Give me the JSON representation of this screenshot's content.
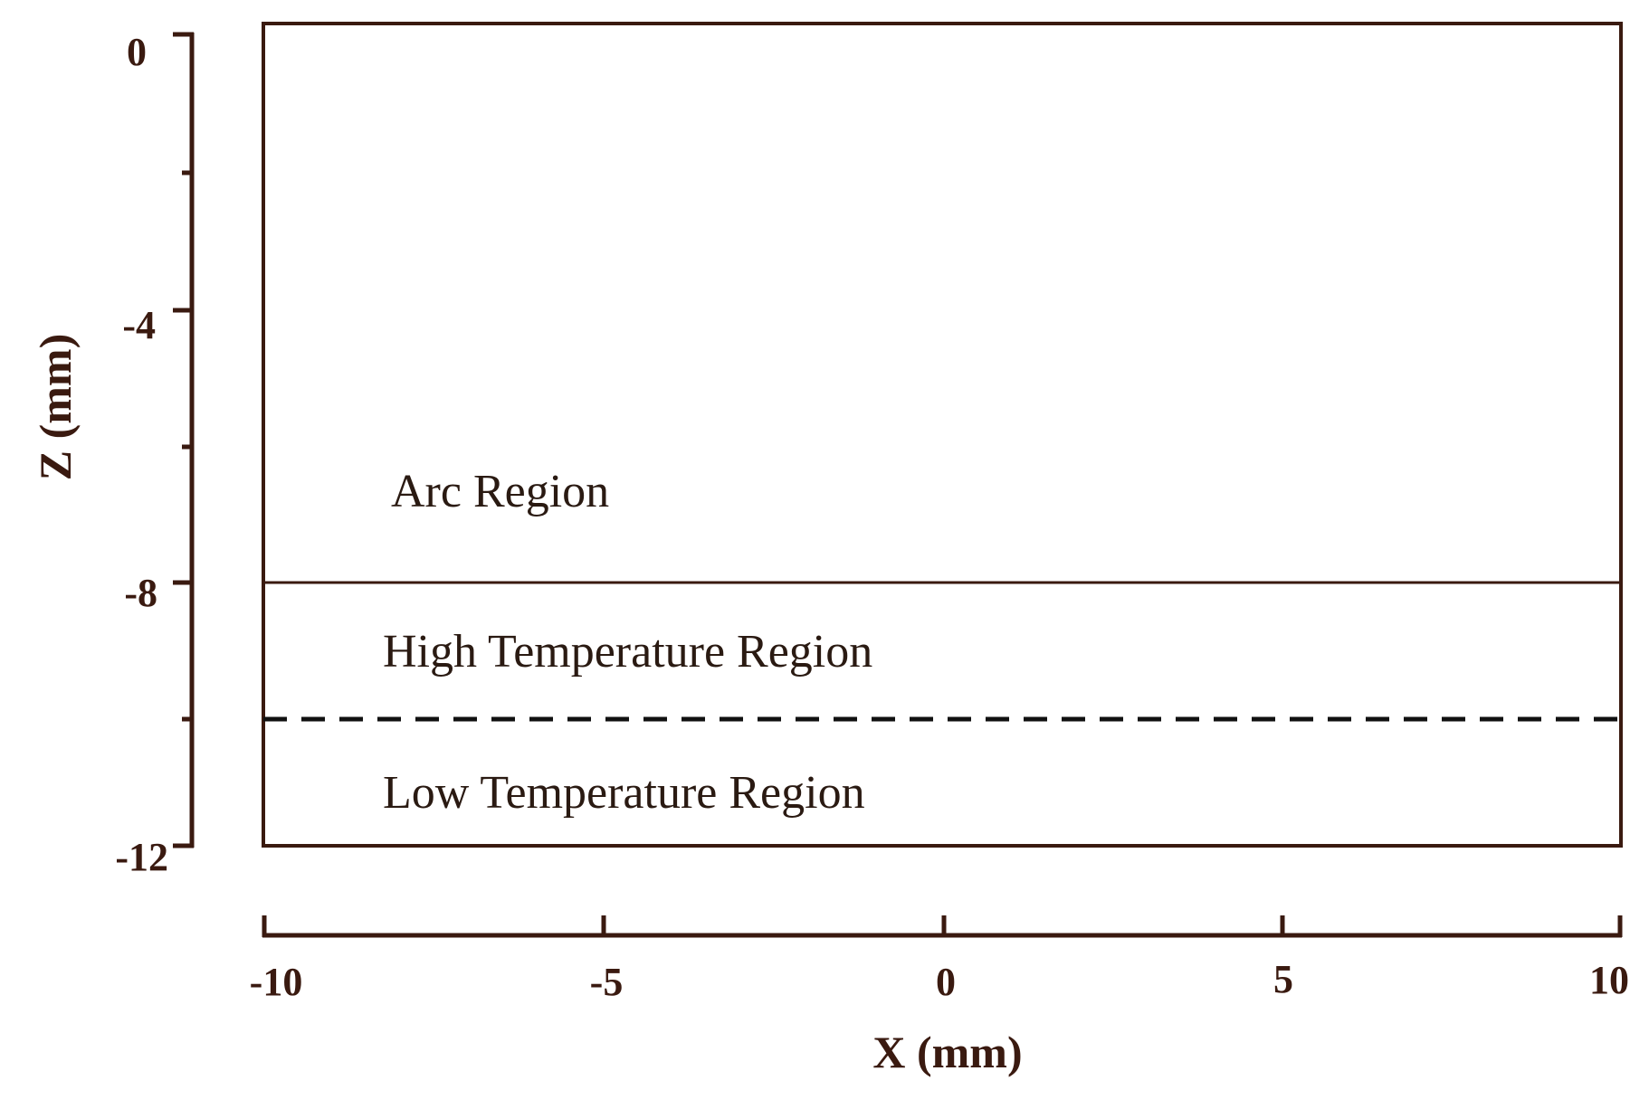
{
  "figure": {
    "x_axis": {
      "title": "X (mm)",
      "range": [
        -10,
        10
      ],
      "ticks": [
        -10,
        -5,
        0,
        5,
        10
      ],
      "tick_labels": [
        "-10",
        "-5",
        "0",
        "5",
        "10"
      ]
    },
    "z_axis": {
      "title": "Z (mm)",
      "range": [
        -12,
        0
      ],
      "major_ticks": [
        0,
        -4,
        -8,
        -12
      ],
      "tick_labels": [
        "0",
        "-4",
        "-8",
        "-12"
      ],
      "minor_ticks": [
        -2,
        -6,
        -10
      ]
    },
    "boundaries": [
      {
        "z": -8,
        "style": "solid"
      },
      {
        "z": -10,
        "style": "dashed"
      }
    ],
    "regions": [
      {
        "label": "Arc Region",
        "z_range": [
          -8,
          0
        ]
      },
      {
        "label": "High Temperature Region",
        "z_range": [
          -10,
          -8
        ]
      },
      {
        "label": "Low Temperature Region",
        "z_range": [
          -12,
          -10
        ]
      }
    ],
    "colors": {
      "line": "#3a1a10",
      "text": "#2a1a12"
    }
  }
}
